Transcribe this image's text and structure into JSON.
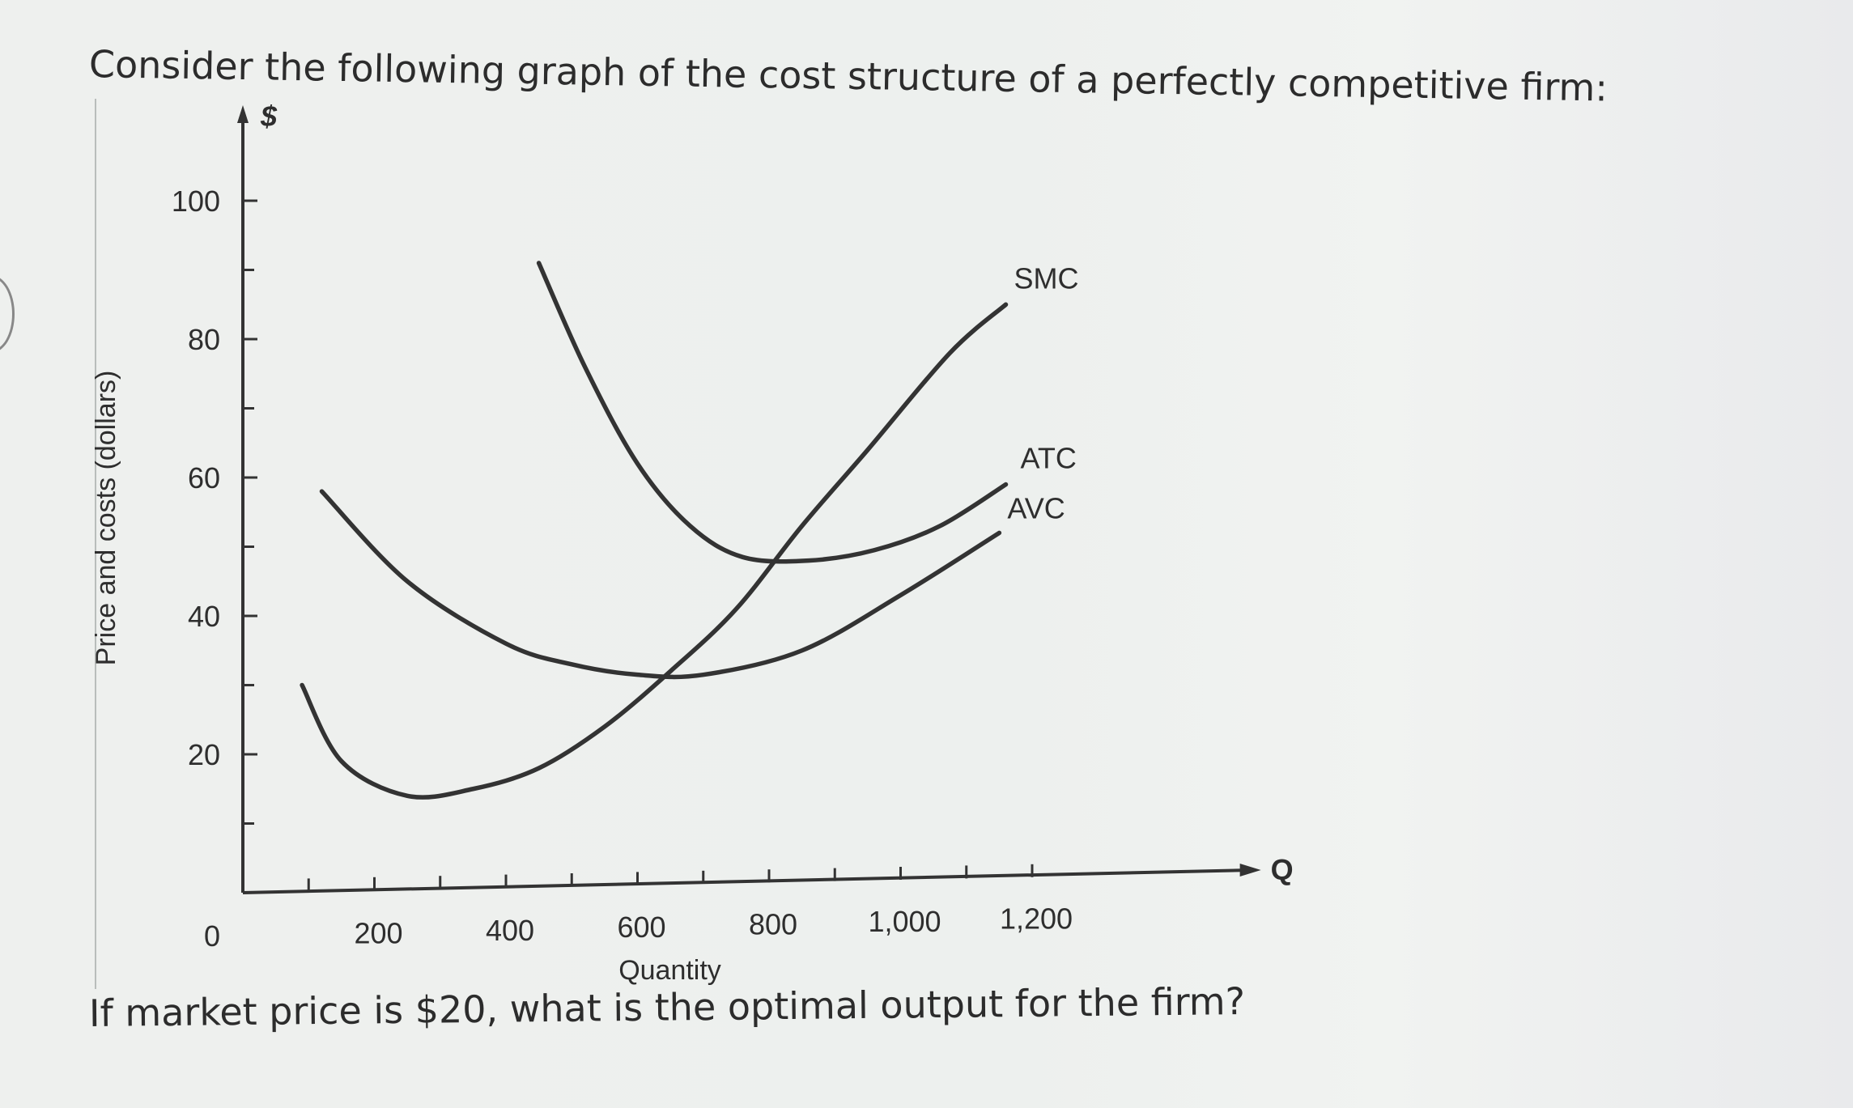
{
  "question": {
    "intro": "Consider the following graph of the cost structure of a perfectly competitive firm:",
    "prompt": "If market price is $20, what is the optimal output for the firm?"
  },
  "chart_data": {
    "type": "line",
    "title": "",
    "xlabel": "Quantity",
    "ylabel": "Price and costs (dollars)",
    "x_axis_symbol": "Q",
    "y_axis_symbol": "$",
    "xlim": [
      0,
      1250
    ],
    "ylim": [
      0,
      100
    ],
    "x_tick_labels": [
      "0",
      "200",
      "400",
      "600",
      "800",
      "1,000",
      "1,200"
    ],
    "x_ticks": [
      0,
      200,
      400,
      600,
      800,
      1000,
      1200
    ],
    "y_tick_labels": [
      "20",
      "40",
      "60",
      "80",
      "100"
    ],
    "y_ticks": [
      20,
      40,
      60,
      80,
      100
    ],
    "grid": false,
    "series": [
      {
        "name": "SMC",
        "x": [
          90,
          150,
          250,
          350,
          450,
          550,
          650,
          750,
          850,
          950,
          1075,
          1160
        ],
        "y": [
          30,
          19,
          14,
          15,
          18,
          24,
          32,
          41,
          53,
          64,
          78,
          85
        ]
      },
      {
        "name": "ATC",
        "x": [
          450,
          520,
          600,
          680,
          760,
          860,
          960,
          1060,
          1160
        ],
        "y": [
          91,
          76,
          62,
          53,
          48.5,
          48,
          49.5,
          53,
          59
        ]
      },
      {
        "name": "AVC",
        "x": [
          120,
          250,
          400,
          500,
          600,
          700,
          850,
          1000,
          1150
        ],
        "y": [
          58,
          45,
          36,
          33,
          31.5,
          31.5,
          35,
          43,
          52
        ]
      }
    ],
    "colors": {
      "curves": "#333333",
      "text": "#2e2e2e"
    }
  }
}
